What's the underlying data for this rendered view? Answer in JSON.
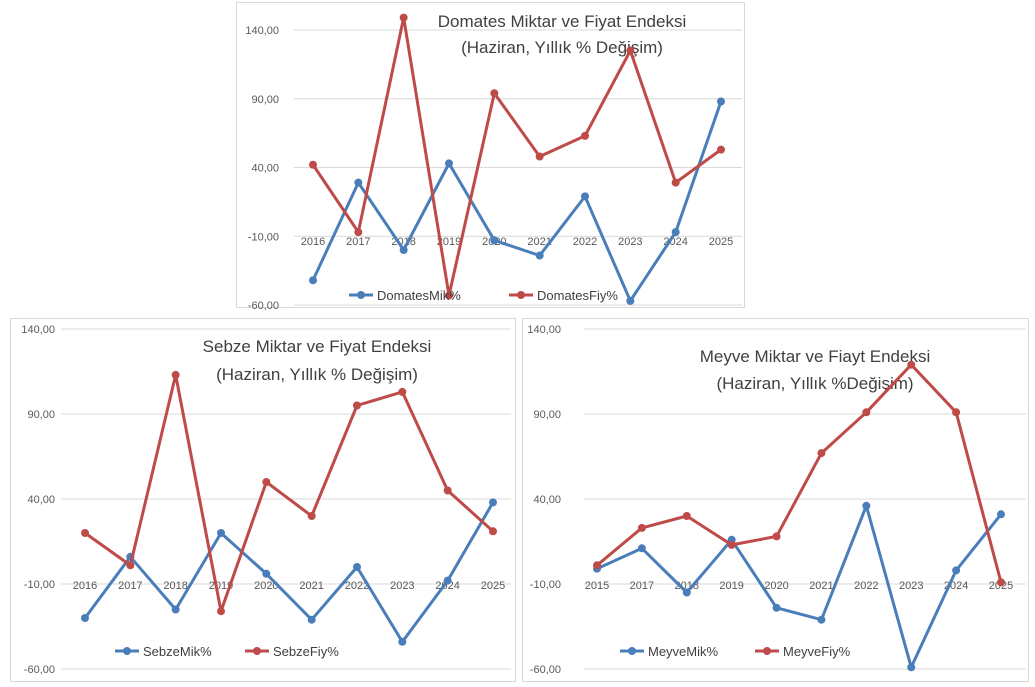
{
  "colors": {
    "miktar": "#4a7ebb",
    "fiyat": "#be4b48",
    "grid": "#d9d9d9",
    "text": "#595959"
  },
  "chart_data": [
    {
      "type": "line",
      "title": "Domates Miktar ve Fiyat Endeksi",
      "subtitle": "(Haziran, Yıllık % Değişim)",
      "categories": [
        "2016",
        "2017",
        "2018",
        "2019",
        "2020",
        "2021",
        "2022",
        "2023",
        "2024",
        "2025"
      ],
      "yticks": [
        "140,00",
        "90,00",
        "40,00",
        "-10,00",
        "-60,00"
      ],
      "ylim": [
        -60,
        140
      ],
      "grid": true,
      "legend": "bottom",
      "series": [
        {
          "name": "DomatesMik%",
          "color": "#4a7ebb",
          "values": [
            -42,
            29,
            -20,
            43,
            -13,
            -24,
            19,
            -57,
            -7,
            88
          ]
        },
        {
          "name": "DomatesFiy%",
          "color": "#be4b48",
          "values": [
            42,
            -7,
            149,
            -53,
            94,
            48,
            63,
            125,
            29,
            53
          ]
        }
      ]
    },
    {
      "type": "line",
      "title": "Sebze Miktar ve Fiyat Endeksi",
      "subtitle": "(Haziran, Yıllık % Değişim)",
      "categories": [
        "2016",
        "2017",
        "2018",
        "2019",
        "2020",
        "2021",
        "2022",
        "2023",
        "2024",
        "2025"
      ],
      "yticks": [
        "140,00",
        "90,00",
        "40,00",
        "-10,00",
        "-60,00"
      ],
      "ylim": [
        -60,
        140
      ],
      "grid": true,
      "legend": "bottom",
      "series": [
        {
          "name": "SebzeMik%",
          "color": "#4a7ebb",
          "values": [
            -30,
            6,
            -25,
            20,
            -4,
            -31,
            0,
            -44,
            -8,
            38
          ]
        },
        {
          "name": "SebzeFiy%",
          "color": "#be4b48",
          "values": [
            20,
            1,
            113,
            -26,
            50,
            30,
            95,
            103,
            45,
            21
          ]
        }
      ]
    },
    {
      "type": "line",
      "title": "Meyve Miktar ve Fiayt Endeksi",
      "subtitle": "(Haziran, Yıllık %Değişim)",
      "categories": [
        "2015",
        "2017",
        "2018",
        "2019",
        "2020",
        "2021",
        "2022",
        "2023",
        "2024",
        "2025"
      ],
      "yticks": [
        "140,00",
        "90,00",
        "40,00",
        "-10,00",
        "-60,00"
      ],
      "ylim": [
        -60,
        140
      ],
      "grid": true,
      "legend": "bottom",
      "series": [
        {
          "name": "MeyveMik%",
          "color": "#4a7ebb",
          "values": [
            -1,
            11,
            -15,
            16,
            -24,
            -31,
            36,
            -59,
            -2,
            31
          ]
        },
        {
          "name": "MeyveFiy%",
          "color": "#be4b48",
          "values": [
            1,
            23,
            30,
            13,
            18,
            67,
            91,
            119,
            91,
            -9
          ]
        }
      ]
    }
  ]
}
